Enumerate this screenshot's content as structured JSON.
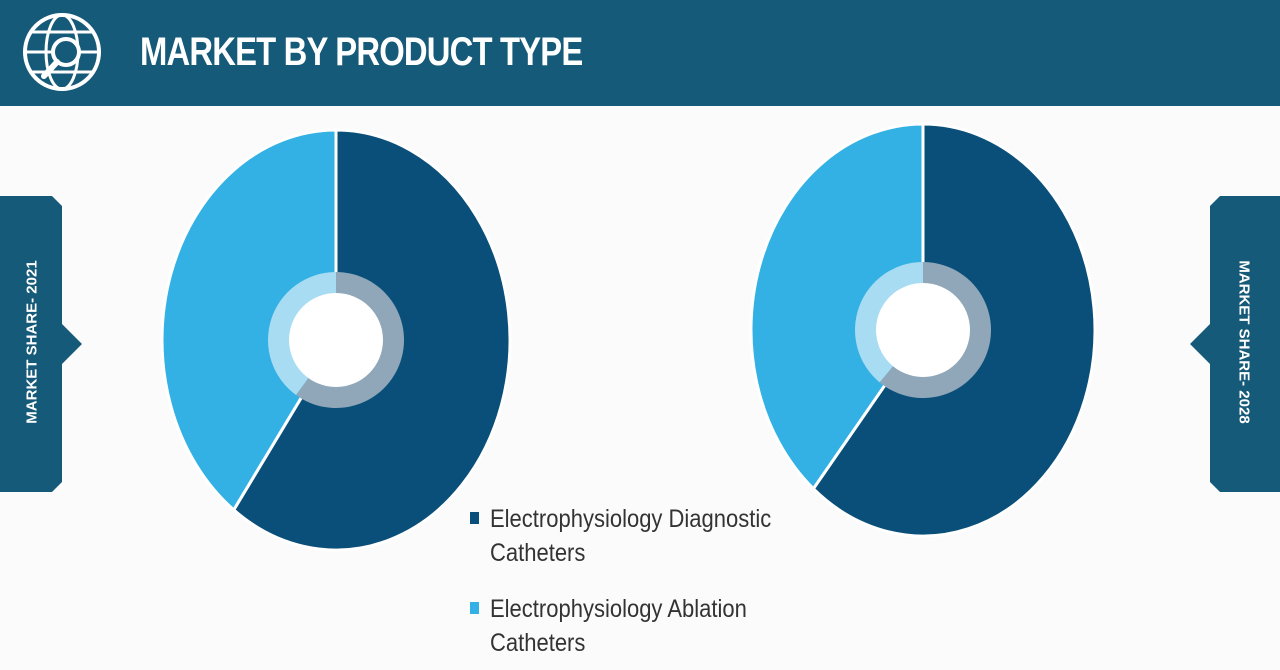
{
  "header": {
    "title": "MARKET BY PRODUCT TYPE",
    "icon": "globe-search-icon",
    "background": "#155a78"
  },
  "side_labels": {
    "left": "MARKET SHARE- 2021",
    "right": "MARKET SHARE- 2028"
  },
  "colors": {
    "diagnostic": "#0a4f7a",
    "ablation": "#33b1e4",
    "inner_ring_dark": "#8fa7b8",
    "inner_ring_light": "#a8dcf2",
    "tab": "#155a78"
  },
  "legend": [
    {
      "label": "Electrophysiology Diagnostic Catheters",
      "color": "#0a4f7a"
    },
    {
      "label": "Electrophysiology Ablation Catheters",
      "color": "#33b1e4"
    }
  ],
  "chart_data": [
    {
      "type": "pie",
      "title": "MARKET SHARE- 2021",
      "categories": [
        "Electrophysiology Diagnostic Catheters",
        "Electrophysiology Ablation Catheters"
      ],
      "values": [
        60,
        40
      ]
    },
    {
      "type": "pie",
      "title": "MARKET SHARE- 2028",
      "categories": [
        "Electrophysiology Diagnostic Catheters",
        "Electrophysiology Ablation Catheters"
      ],
      "values": [
        61,
        39
      ]
    }
  ]
}
